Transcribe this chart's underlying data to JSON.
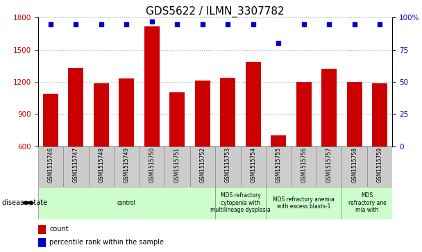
{
  "title": "GDS5622 / ILMN_3307782",
  "samples": [
    "GSM1515746",
    "GSM1515747",
    "GSM1515748",
    "GSM1515749",
    "GSM1515750",
    "GSM1515751",
    "GSM1515752",
    "GSM1515753",
    "GSM1515754",
    "GSM1515755",
    "GSM1515756",
    "GSM1515757",
    "GSM1515758",
    "GSM1515759"
  ],
  "counts": [
    1090,
    1330,
    1185,
    1235,
    1720,
    1105,
    1215,
    1240,
    1385,
    700,
    1200,
    1320,
    1200,
    1185
  ],
  "percentile_ranks": [
    95,
    95,
    95,
    95,
    97,
    95,
    95,
    95,
    95,
    80,
    95,
    95,
    95,
    95
  ],
  "ylim_left": [
    600,
    1800
  ],
  "ylim_right": [
    0,
    100
  ],
  "yticks_left": [
    600,
    900,
    1200,
    1500,
    1800
  ],
  "yticks_right": [
    0,
    25,
    50,
    75,
    100
  ],
  "bar_color": "#cc0000",
  "dot_color": "#0000cc",
  "grid_color": "#aaaaaa",
  "group_boundaries": [
    {
      "start": 0,
      "end": 7,
      "label": "control"
    },
    {
      "start": 7,
      "end": 9,
      "label": "MDS refractory\ncytopenia with\nmultilineage dysplasia"
    },
    {
      "start": 9,
      "end": 12,
      "label": "MDS refractory anemia\nwith excess blasts-1"
    },
    {
      "start": 12,
      "end": 14,
      "label": "MDS\nrefractory ane\nmia with"
    }
  ],
  "legend_count_label": "count",
  "legend_pct_label": "percentile rank within the sample",
  "disease_state_label": "disease state",
  "title_fontsize": 11,
  "tick_fontsize": 7.5,
  "sample_fontsize": 5.5,
  "disease_fontsize": 5.5
}
